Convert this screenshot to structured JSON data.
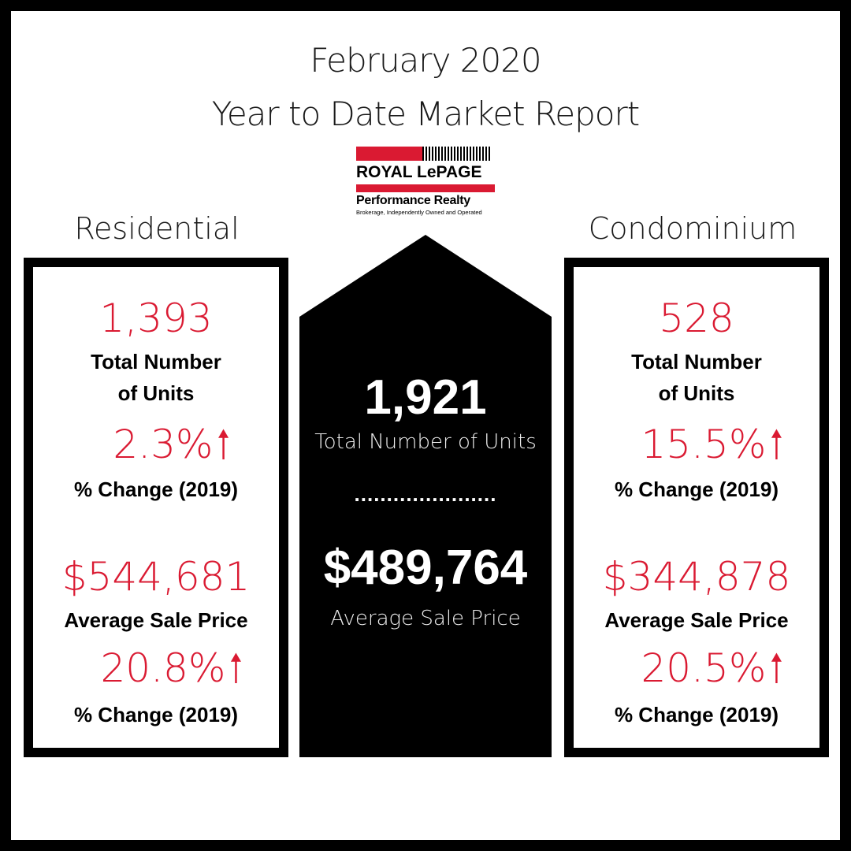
{
  "header": {
    "title_line1": "February 2020",
    "title_line2": "Year to Date Market Report"
  },
  "logo": {
    "brand": "ROYAL LePAGE",
    "name": "Performance Realty",
    "tagline": "Brokerage, Independently Owned and Operated",
    "colors": {
      "red": "#da1a32",
      "black": "#000000"
    }
  },
  "residential": {
    "label": "Residential",
    "units_value": "1,393",
    "units_label_line1": "Total Number",
    "units_label_line2": "of Units",
    "units_change": "2.3%",
    "units_change_label": "% Change (2019)",
    "price_value": "$544,681",
    "price_label": "Average Sale Price",
    "price_change": "20.8%",
    "price_change_label": "% Change (2019)",
    "arrow_icon": "up-arrow-icon"
  },
  "center": {
    "units_value": "1,921",
    "units_label": "Total Number of Units",
    "divider": "......................",
    "price_value": "$489,764",
    "price_label": "Average Sale Price"
  },
  "condominium": {
    "label": "Condominium",
    "units_value": "528",
    "units_label_line1": "Total Number",
    "units_label_line2": "of Units",
    "units_change": "15.5%",
    "units_change_label": "% Change (2019)",
    "price_value": "$344,878",
    "price_label": "Average Sale Price",
    "price_change": "20.5%",
    "price_change_label": "% Change (2019)",
    "arrow_icon": "up-arrow-icon"
  },
  "colors": {
    "accent_red": "#da1a32",
    "dark": "#000000",
    "background": "#ffffff"
  }
}
